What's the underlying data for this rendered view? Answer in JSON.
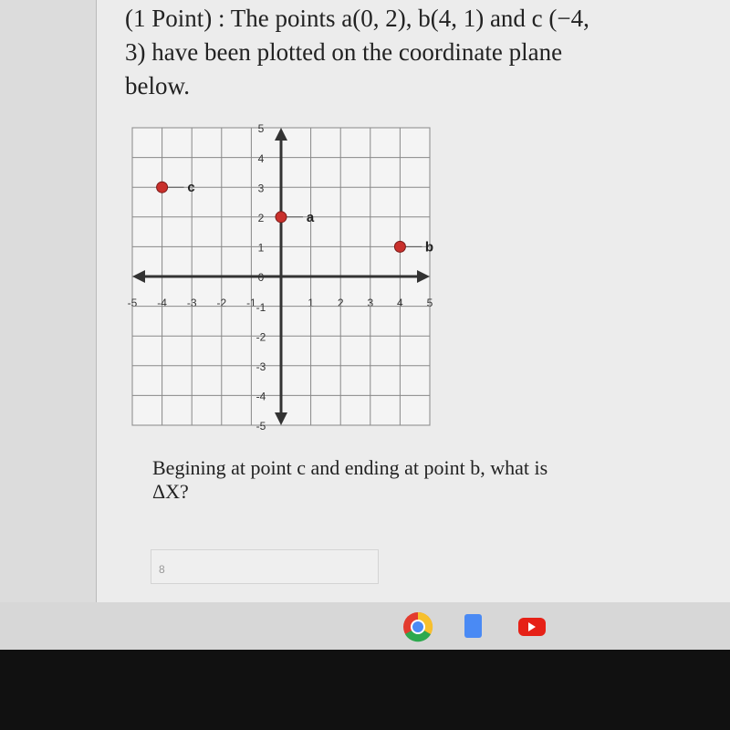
{
  "question": "(1 Point) : The points a(0, 2), b(4, 1) and c (−4, 3) have been plotted on the coordinate plane below.",
  "chart_data": {
    "type": "scatter",
    "series": [
      {
        "name": "c",
        "color": "#c9302c",
        "x": [
          -4
        ],
        "values": [
          3
        ]
      },
      {
        "name": "a",
        "color": "#c9302c",
        "x": [
          0
        ],
        "values": [
          2
        ]
      },
      {
        "name": "b",
        "color": "#c9302c",
        "x": [
          4
        ],
        "values": [
          1
        ]
      }
    ],
    "xlim": [
      -5,
      5
    ],
    "ylim": [
      -5,
      5
    ],
    "xticks": [
      -5,
      -4,
      -3,
      -2,
      -1,
      1,
      2,
      3,
      4,
      5
    ],
    "yticks": [
      -5,
      -4,
      -3,
      -2,
      -1,
      0,
      1,
      2,
      3,
      4,
      5
    ],
    "grid": true
  },
  "prompt": "Begining at point c and ending at point b, what is ΔX?",
  "answer": "8"
}
